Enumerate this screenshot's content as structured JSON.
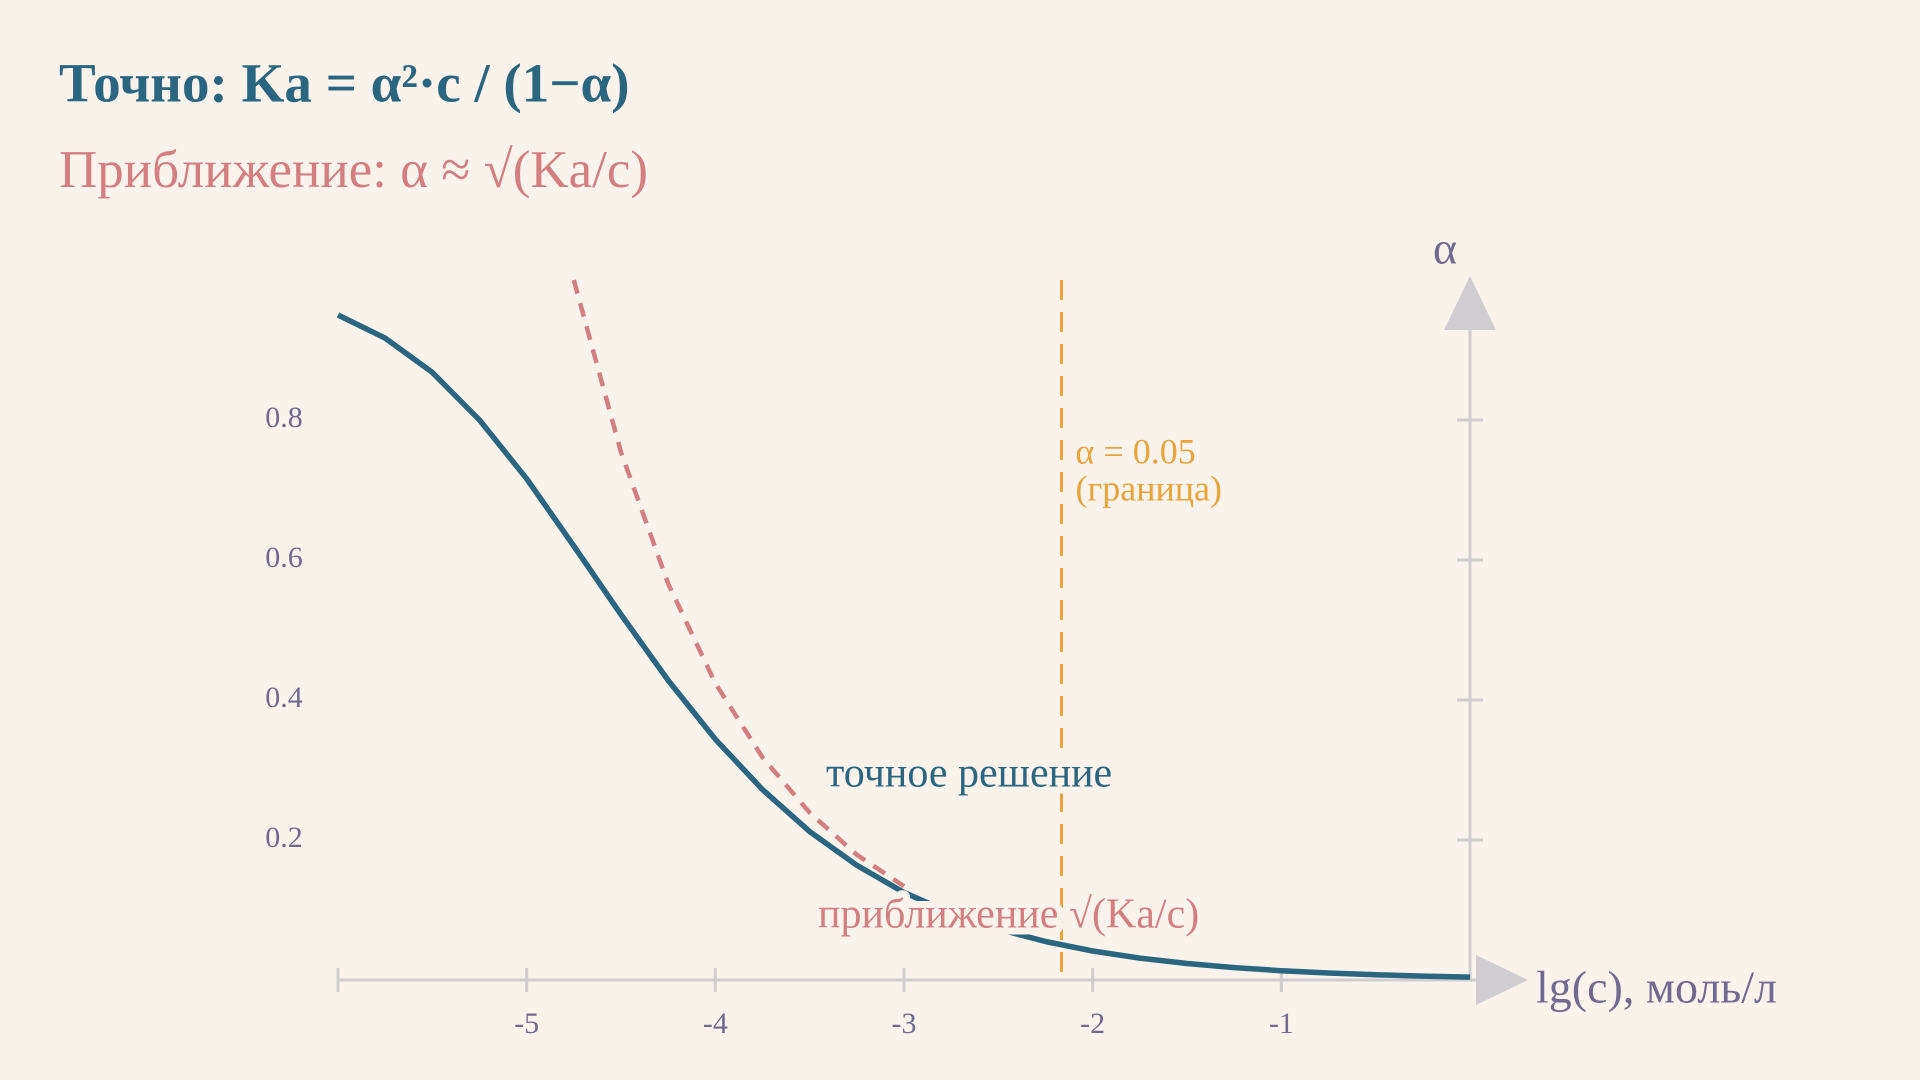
{
  "chart_data": {
    "type": "line",
    "title": "Точно:  Ka = α²·c / (1−α)",
    "subtitle": "Приближение: α ≈ √(Ka/c)",
    "x_label": "lg(c), моль/л",
    "y_label": "α",
    "x": [
      -6,
      -5.75,
      -5.5,
      -5.25,
      -5,
      -4.75,
      -4.5,
      -4.25,
      -4,
      -3.75,
      -3.5,
      -3.25,
      -3,
      -2.75,
      -2.5,
      -2.25,
      -2,
      -1.75,
      -1.5,
      -1.25,
      -1,
      -0.75,
      -0.5,
      -0.25,
      0
    ],
    "series": [
      {
        "name": "точное решение",
        "color": "#2a6680",
        "dashed": false,
        "values": [
          0.95,
          0.917,
          0.868,
          0.8,
          0.716,
          0.62,
          0.522,
          0.428,
          0.344,
          0.272,
          0.212,
          0.164,
          0.125,
          0.0957,
          0.0727,
          0.055,
          0.0415,
          0.0313,
          0.0236,
          0.0177,
          0.0133,
          0.01,
          0.0075,
          0.0056,
          0.0042
        ]
      },
      {
        "name": "приближение √(Ka/c)",
        "color": "#d47f7f",
        "dashed": true,
        "values": [
          null,
          null,
          null,
          null,
          null,
          1.0,
          0.754,
          0.566,
          0.424,
          0.318,
          0.239,
          0.179,
          0.134,
          null,
          null,
          null,
          null,
          null,
          null,
          null,
          null,
          null,
          null,
          null,
          null
        ]
      }
    ],
    "xlim": [
      -6,
      0
    ],
    "ylim": [
      0,
      1
    ],
    "xticks": [
      -5,
      -4,
      -3,
      -2,
      -1
    ],
    "yticks": [
      0.2,
      0.4,
      0.6,
      0.8
    ],
    "threshold": {
      "x": -2.165,
      "color": "#e8a33a",
      "label_lines": [
        "α  = 0.05",
        "(граница)"
      ]
    },
    "grid": false
  }
}
